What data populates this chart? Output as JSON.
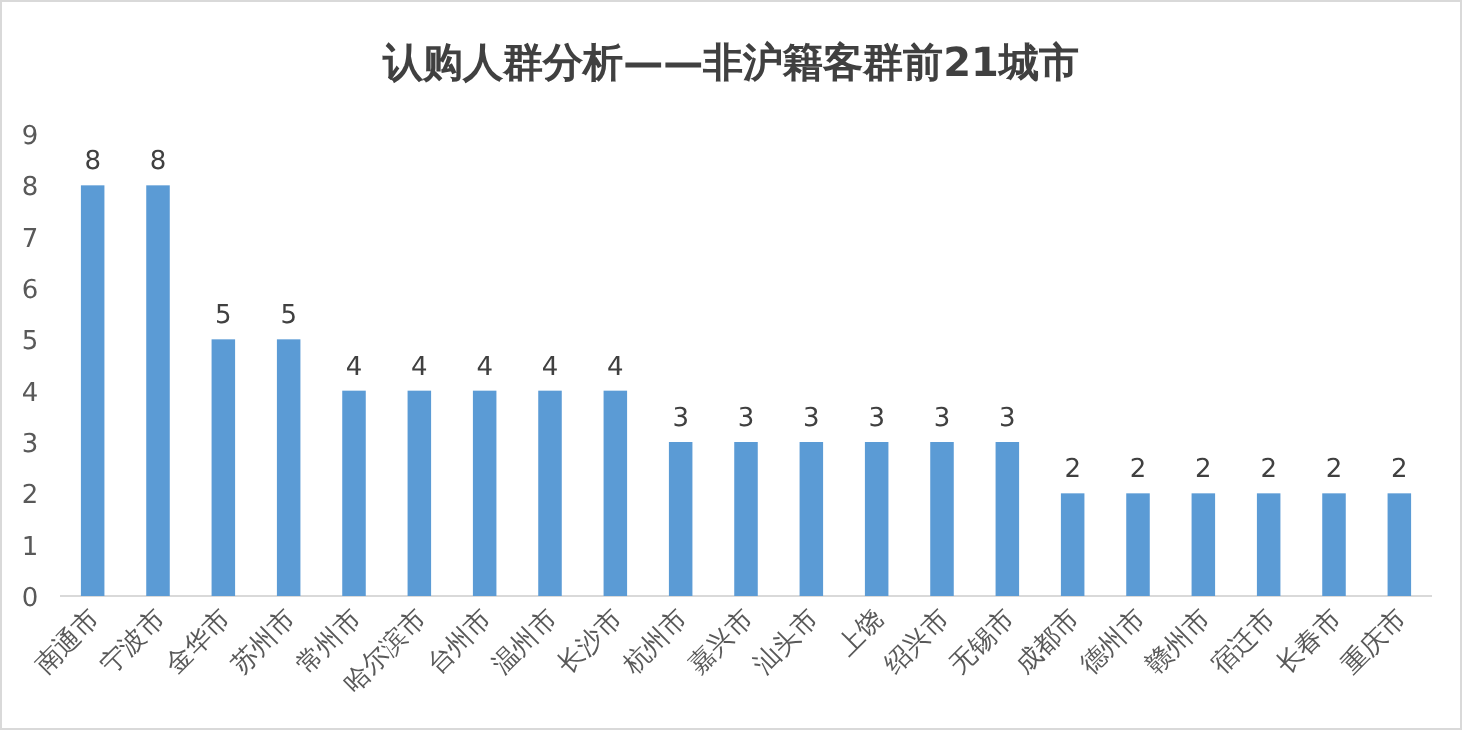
{
  "chart_data": {
    "type": "bar",
    "title": "认购人群分析——非沪籍客群前21城市",
    "categories": [
      "南通市",
      "宁波市",
      "金华市",
      "苏州市",
      "常州市",
      "哈尔滨市",
      "台州市",
      "温州市",
      "长沙市",
      "杭州市",
      "嘉兴市",
      "汕头市",
      "上饶",
      "绍兴市",
      "无锡市",
      "成都市",
      "德州市",
      "赣州市",
      "宿迁市",
      "长春市",
      "重庆市"
    ],
    "values": [
      8,
      8,
      5,
      5,
      4,
      4,
      4,
      4,
      4,
      3,
      3,
      3,
      3,
      3,
      3,
      2,
      2,
      2,
      2,
      2,
      2
    ],
    "color": "#5b9bd5",
    "ylim": [
      0,
      9
    ],
    "yticks": [
      0,
      1,
      2,
      3,
      4,
      5,
      6,
      7,
      8,
      9
    ],
    "data_labels": true,
    "grid": false
  }
}
